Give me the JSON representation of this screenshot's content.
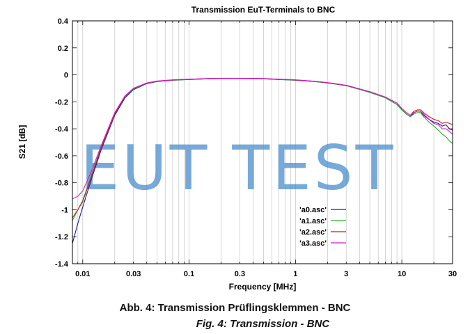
{
  "chart_data": {
    "type": "line",
    "title": "Transmission EuT-Terminals to BNC",
    "xlabel": "Frequency [MHz]",
    "ylabel": "S21 [dB]",
    "x_scale": "log",
    "xlim": [
      0.008,
      30
    ],
    "ylim": [
      -1.4,
      0.4
    ],
    "x_ticks": [
      0.01,
      0.03,
      0.1,
      0.3,
      1,
      3,
      10,
      30
    ],
    "x_tick_labels": [
      "0.01",
      "0.03",
      "0.1",
      "0.3",
      "1",
      "3",
      "10",
      "30"
    ],
    "y_ticks": [
      0.4,
      0.2,
      0,
      -0.2,
      -0.4,
      -0.6,
      -0.8,
      -1,
      -1.2,
      -1.4
    ],
    "y_tick_labels": [
      "0.4",
      "0.2",
      "0",
      "-0.2",
      "-0.4",
      "-0.6",
      "-0.8",
      "-1",
      "-1.2",
      "-1.4"
    ],
    "grid": "vertical log decades",
    "legend_position": "bottom-right",
    "watermark": "EUT TEST",
    "series": [
      {
        "name": "'a0.asc'",
        "color": "#1a1aa8",
        "x": [
          0.008,
          0.009,
          0.01,
          0.012,
          0.015,
          0.02,
          0.025,
          0.03,
          0.04,
          0.05,
          0.07,
          0.1,
          0.15,
          0.2,
          0.3,
          0.5,
          0.7,
          1,
          1.5,
          2,
          3,
          5,
          7,
          9,
          10,
          11,
          12,
          13,
          14,
          15,
          16,
          18,
          20,
          22,
          24,
          26,
          28,
          30
        ],
        "y": [
          -1.25,
          -1.1,
          -0.98,
          -0.78,
          -0.55,
          -0.3,
          -0.17,
          -0.11,
          -0.065,
          -0.05,
          -0.04,
          -0.035,
          -0.03,
          -0.028,
          -0.028,
          -0.03,
          -0.035,
          -0.04,
          -0.05,
          -0.06,
          -0.08,
          -0.13,
          -0.17,
          -0.22,
          -0.26,
          -0.29,
          -0.31,
          -0.28,
          -0.27,
          -0.27,
          -0.3,
          -0.33,
          -0.35,
          -0.36,
          -0.38,
          -0.37,
          -0.4,
          -0.41
        ]
      },
      {
        "name": "'a1.asc'",
        "color": "#22b422",
        "x": [
          0.008,
          0.009,
          0.01,
          0.012,
          0.015,
          0.02,
          0.025,
          0.03,
          0.04,
          0.05,
          0.07,
          0.1,
          0.15,
          0.2,
          0.3,
          0.5,
          0.7,
          1,
          1.5,
          2,
          3,
          5,
          7,
          9,
          10,
          11,
          12,
          13,
          14,
          15,
          16,
          18,
          20,
          22,
          24,
          26,
          28,
          30
        ],
        "y": [
          -1.08,
          -1.0,
          -0.93,
          -0.75,
          -0.53,
          -0.29,
          -0.16,
          -0.105,
          -0.063,
          -0.048,
          -0.039,
          -0.034,
          -0.029,
          -0.027,
          -0.027,
          -0.029,
          -0.034,
          -0.039,
          -0.049,
          -0.059,
          -0.079,
          -0.13,
          -0.17,
          -0.22,
          -0.26,
          -0.29,
          -0.31,
          -0.29,
          -0.28,
          -0.28,
          -0.31,
          -0.35,
          -0.38,
          -0.41,
          -0.44,
          -0.46,
          -0.49,
          -0.51
        ]
      },
      {
        "name": "'a2.asc'",
        "color": "#d01818",
        "x": [
          0.008,
          0.009,
          0.01,
          0.012,
          0.015,
          0.02,
          0.025,
          0.03,
          0.04,
          0.05,
          0.07,
          0.1,
          0.15,
          0.2,
          0.3,
          0.5,
          0.7,
          1,
          1.5,
          2,
          3,
          5,
          7,
          9,
          10,
          11,
          12,
          13,
          14,
          15,
          16,
          18,
          20,
          22,
          24,
          26,
          28,
          30
        ],
        "y": [
          -1.06,
          -1.0,
          -0.94,
          -0.76,
          -0.54,
          -0.29,
          -0.16,
          -0.1,
          -0.062,
          -0.047,
          -0.038,
          -0.033,
          -0.028,
          -0.026,
          -0.026,
          -0.028,
          -0.033,
          -0.038,
          -0.048,
          -0.058,
          -0.078,
          -0.125,
          -0.165,
          -0.21,
          -0.25,
          -0.28,
          -0.3,
          -0.27,
          -0.26,
          -0.26,
          -0.28,
          -0.31,
          -0.33,
          -0.34,
          -0.36,
          -0.35,
          -0.36,
          -0.37
        ]
      },
      {
        "name": "'a3.asc'",
        "color": "#d018d0",
        "x": [
          0.008,
          0.009,
          0.01,
          0.012,
          0.015,
          0.02,
          0.025,
          0.03,
          0.04,
          0.05,
          0.07,
          0.1,
          0.15,
          0.2,
          0.3,
          0.5,
          0.7,
          1,
          1.5,
          2,
          3,
          5,
          7,
          9,
          10,
          11,
          12,
          13,
          14,
          15,
          16,
          18,
          20,
          22,
          24,
          26,
          28,
          30
        ],
        "y": [
          -0.92,
          -0.9,
          -0.86,
          -0.72,
          -0.52,
          -0.28,
          -0.155,
          -0.1,
          -0.06,
          -0.046,
          -0.037,
          -0.032,
          -0.027,
          -0.025,
          -0.025,
          -0.027,
          -0.032,
          -0.037,
          -0.047,
          -0.057,
          -0.077,
          -0.125,
          -0.165,
          -0.21,
          -0.25,
          -0.28,
          -0.3,
          -0.28,
          -0.27,
          -0.27,
          -0.29,
          -0.33,
          -0.36,
          -0.37,
          -0.4,
          -0.4,
          -0.42,
          -0.44
        ]
      }
    ]
  },
  "caption": {
    "line1": "Abb. 4: Transmission Prüflingsklemmen - BNC",
    "line2": "Fig. 4: Transmission - BNC"
  }
}
